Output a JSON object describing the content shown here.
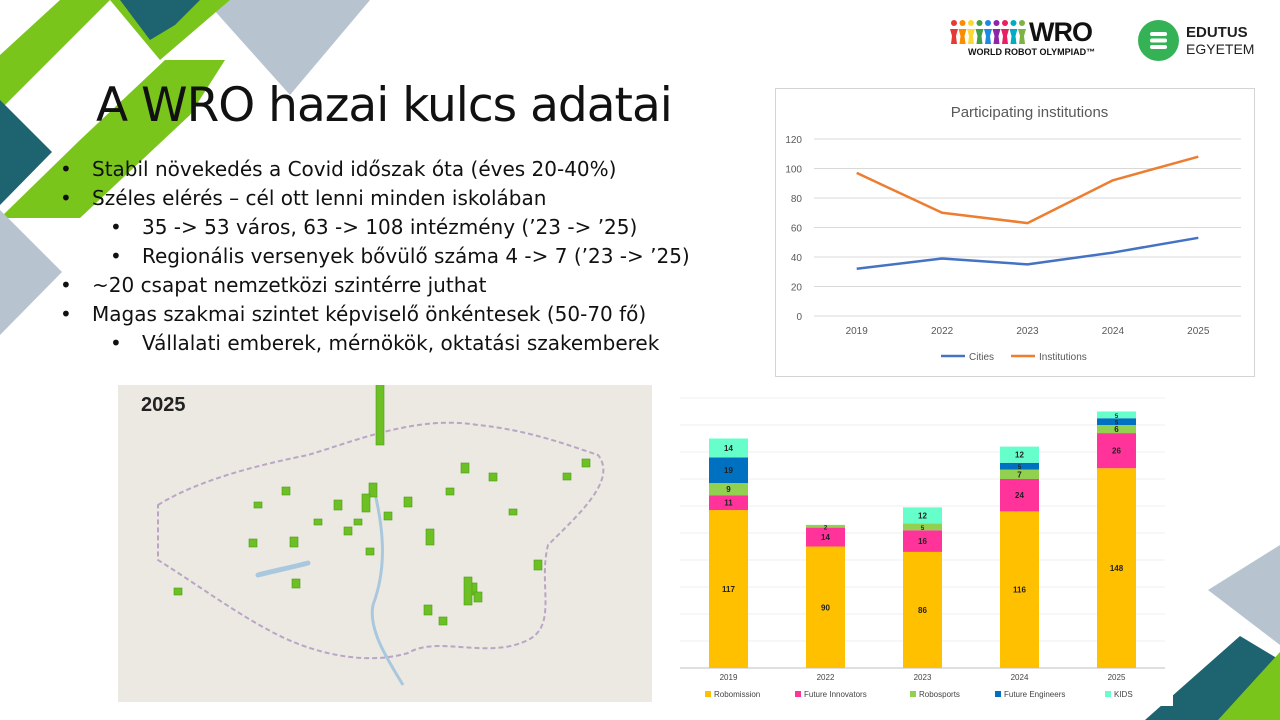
{
  "slide": {
    "title": "A WRO hazai kulcs adatai",
    "bullets": [
      {
        "level": 1,
        "text": "Stabil növekedés a Covid időszak óta (éves 20-40%)"
      },
      {
        "level": 1,
        "text": "Széles elérés – cél ott lenni minden iskolában"
      },
      {
        "level": 2,
        "text": "35 -> 53 város, 63 -> 108 intézmény (’23 -> ’25)"
      },
      {
        "level": 2,
        "text": "Regionális versenyek bővülő száma 4 -> 7 (’23 -> ’25)"
      },
      {
        "level": 1,
        "text": "~20 csapat nemzetközi szintérre juthat"
      },
      {
        "level": 1,
        "text": "Magas szakmai szintet képviselő önkéntesek (50-70 fő)"
      },
      {
        "level": 2,
        "text": "Vállalati emberek, mérnökök, oktatási szakemberek"
      }
    ]
  },
  "logos": {
    "wro_name": "WRO",
    "wro_tagline": "WORLD ROBOT OLYMPIAD™",
    "edutus_line1": "EDUTUS",
    "edutus_line2": "EGYETEM"
  },
  "map": {
    "label": "2025",
    "bar_color": "#6cc024"
  },
  "theme": {
    "green": "#7ac51c",
    "teal": "#1d6470",
    "gray": "#b7c4d0"
  },
  "chart_data": [
    {
      "type": "line",
      "title": "Participating institutions",
      "x": [
        "2019",
        "2022",
        "2023",
        "2024",
        "2025"
      ],
      "ylim": [
        0,
        120
      ],
      "yticks": [
        0,
        20,
        40,
        60,
        80,
        100,
        120
      ],
      "grid": true,
      "legend_position": "bottom",
      "series": [
        {
          "name": "Cities",
          "color": "#4472c4",
          "values": [
            32,
            39,
            35,
            43,
            53
          ]
        },
        {
          "name": "Institutions",
          "color": "#ed7d31",
          "values": [
            97,
            70,
            63,
            92,
            108
          ]
        }
      ]
    },
    {
      "type": "bar",
      "stacked": true,
      "categories": [
        "2019",
        "2022",
        "2023",
        "2024",
        "2025"
      ],
      "ylim": [
        0,
        200
      ],
      "legend_position": "bottom",
      "series": [
        {
          "name": "Robomission",
          "color": "#ffc000",
          "values": [
            117,
            90,
            86,
            116,
            148
          ]
        },
        {
          "name": "Future Innovators",
          "color": "#ff3399",
          "values": [
            11,
            14,
            16,
            24,
            26
          ]
        },
        {
          "name": "Robosports",
          "color": "#92d050",
          "values": [
            9,
            2,
            5,
            7,
            6
          ]
        },
        {
          "name": "Future Engineers",
          "color": "#0070c0",
          "values": [
            19,
            0,
            0,
            5,
            5
          ]
        },
        {
          "name": "KIDS",
          "color": "#66ffcc",
          "values": [
            14,
            0,
            12,
            12,
            5
          ]
        }
      ]
    }
  ]
}
